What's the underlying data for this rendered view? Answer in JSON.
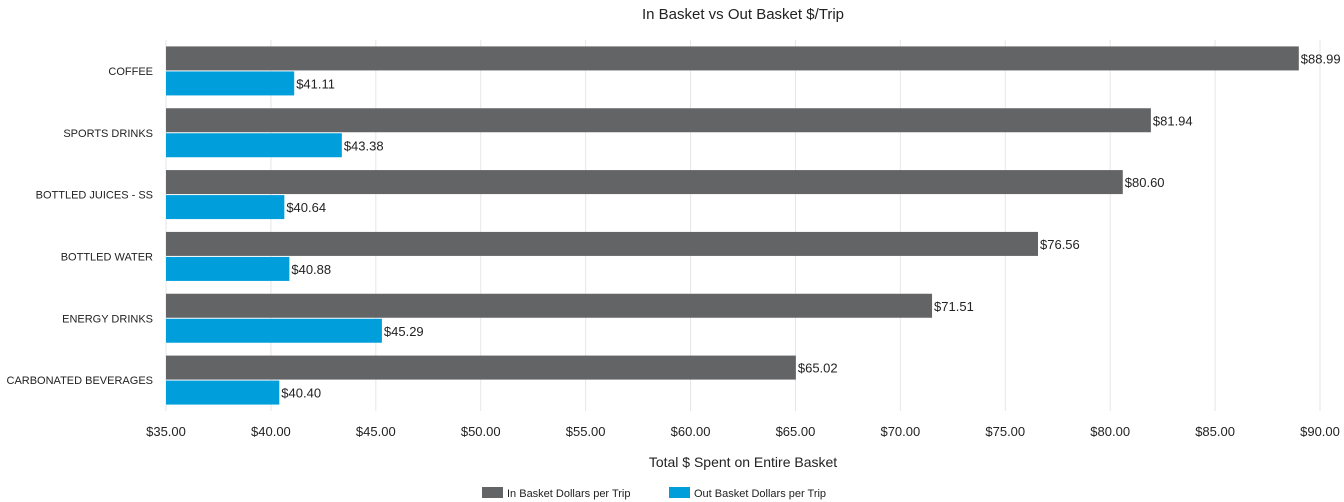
{
  "chart_data": {
    "type": "bar",
    "orientation": "horizontal",
    "title": "In Basket vs Out Basket $/Trip",
    "xlabel": "Total $ Spent on Entire Basket",
    "ylabel": "",
    "categories": [
      "COFFEE",
      "SPORTS DRINKS",
      "BOTTLED JUICES - SS",
      "BOTTLED WATER",
      "ENERGY DRINKS",
      "CARBONATED BEVERAGES"
    ],
    "series": [
      {
        "name": "In Basket Dollars per Trip",
        "color": "#636466",
        "values": [
          88.99,
          81.94,
          80.6,
          76.56,
          71.51,
          65.02
        ],
        "labels": [
          "$88.99",
          "$81.94",
          "$80.60",
          "$76.56",
          "$71.51",
          "$65.02"
        ]
      },
      {
        "name": "Out Basket Dollars per Trip",
        "color": "#009fdb",
        "values": [
          41.11,
          43.38,
          40.64,
          40.88,
          45.29,
          40.4
        ],
        "labels": [
          "$41.11",
          "$43.38",
          "$40.64",
          "$40.88",
          "$45.29",
          "$40.40"
        ]
      }
    ],
    "xlim": [
      35,
      90
    ],
    "xticks": [
      35,
      40,
      45,
      50,
      55,
      60,
      65,
      70,
      75,
      80,
      85,
      90
    ],
    "xtick_labels": [
      "$35.00",
      "$40.00",
      "$45.00",
      "$50.00",
      "$55.00",
      "$60.00",
      "$65.00",
      "$70.00",
      "$75.00",
      "$80.00",
      "$85.00",
      "$90.00"
    ],
    "grid": true,
    "legend": "bottom-center"
  }
}
